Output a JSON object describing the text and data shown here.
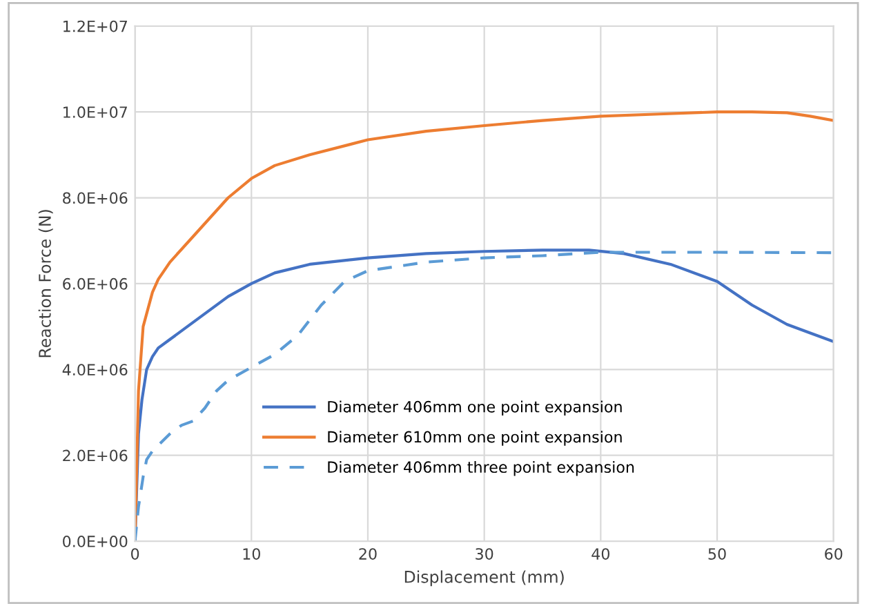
{
  "chart_data": {
    "type": "line",
    "xlabel": "Displacement (mm)",
    "ylabel": "Reaction Force (N)",
    "xlim": [
      0,
      60
    ],
    "xticks": [
      0,
      10,
      20,
      30,
      40,
      50,
      60
    ],
    "ylim": [
      0,
      12000000
    ],
    "yticks": [
      {
        "value": 0,
        "label": "0.0E+00"
      },
      {
        "value": 2000000,
        "label": "2.0E+06"
      },
      {
        "value": 4000000,
        "label": "4.0E+06"
      },
      {
        "value": 6000000,
        "label": "6.0E+06"
      },
      {
        "value": 8000000,
        "label": "8.0E+06"
      },
      {
        "value": 10000000,
        "label": "1.0E+07"
      },
      {
        "value": 12000000,
        "label": "1.2E+07"
      }
    ],
    "grid": true,
    "legend": "bottom",
    "marker": "none",
    "series": [
      {
        "name": "Diameter 406mm one point expansion",
        "color": "#4472c4",
        "line_style": "solid",
        "x": [
          0,
          0.3,
          0.6,
          1,
          1.5,
          2,
          3,
          5,
          8,
          10,
          12,
          15,
          20,
          25,
          30,
          35,
          39,
          42,
          46,
          50,
          53,
          56,
          58,
          60
        ],
        "values": [
          0,
          2500000,
          3300000,
          4000000,
          4300000,
          4500000,
          4700000,
          5100000,
          5700000,
          6000000,
          6250000,
          6450000,
          6600000,
          6700000,
          6750000,
          6780000,
          6780000,
          6700000,
          6450000,
          6050000,
          5500000,
          5050000,
          4850000,
          4650000
        ]
      },
      {
        "name": "Diameter 610mm one point expansion",
        "color": "#ed7d31",
        "line_style": "solid",
        "x": [
          0,
          0.3,
          0.7,
          1.5,
          2,
          3,
          5,
          8,
          10,
          12,
          15,
          20,
          25,
          30,
          35,
          40,
          45,
          50,
          53,
          56,
          58,
          60
        ],
        "values": [
          0,
          3500000,
          5000000,
          5800000,
          6100000,
          6500000,
          7100000,
          8000000,
          8450000,
          8750000,
          9000000,
          9350000,
          9550000,
          9680000,
          9800000,
          9900000,
          9950000,
          10000000,
          10000000,
          9980000,
          9900000,
          9800000
        ]
      },
      {
        "name": "Diameter 406mm three point expansion",
        "color": "#5b9bd5",
        "line_style": "dashed",
        "x": [
          0,
          0.3,
          0.7,
          1,
          1.5,
          3,
          4,
          5,
          6,
          7,
          8,
          10,
          12,
          14,
          16,
          18,
          20,
          25,
          30,
          35,
          40,
          45,
          50,
          60
        ],
        "values": [
          0,
          800000,
          1500000,
          1900000,
          2100000,
          2500000,
          2700000,
          2800000,
          3100000,
          3500000,
          3750000,
          4050000,
          4350000,
          4800000,
          5500000,
          6050000,
          6300000,
          6500000,
          6600000,
          6650000,
          6730000,
          6730000,
          6730000,
          6720000
        ]
      }
    ]
  }
}
